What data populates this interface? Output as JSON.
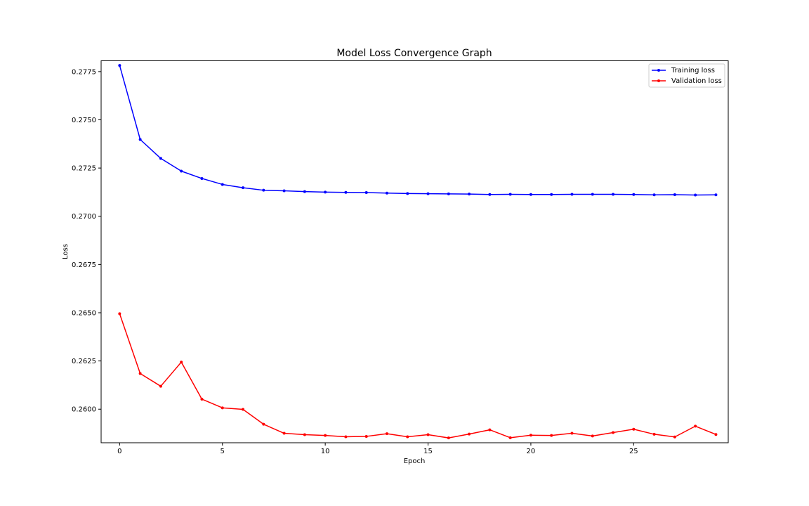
{
  "chart_data": {
    "type": "line",
    "title": "Model Loss Convergence Graph",
    "xlabel": "Epoch",
    "ylabel": "Loss",
    "xlim": [
      -0.9,
      29.6
    ],
    "ylim": [
      0.25826,
      0.27806
    ],
    "x_ticks": [
      0,
      5,
      10,
      15,
      20,
      25
    ],
    "y_ticks": [
      0.26,
      0.2625,
      0.265,
      0.2675,
      0.27,
      0.2725,
      0.275,
      0.2775
    ],
    "y_tick_labels": [
      "0.2600",
      "0.2625",
      "0.2650",
      "0.2675",
      "0.2700",
      "0.2725",
      "0.2750",
      "0.2775"
    ],
    "grid": false,
    "legend_position": "top-right",
    "x": [
      0,
      1,
      2,
      3,
      4,
      5,
      6,
      7,
      8,
      9,
      10,
      11,
      12,
      13,
      14,
      15,
      16,
      17,
      18,
      19,
      20,
      21,
      22,
      23,
      24,
      25,
      26,
      27,
      28,
      29
    ],
    "series": [
      {
        "name": "Training loss",
        "color": "#0000ff",
        "marker": "dot",
        "values": [
          0.27782,
          0.27398,
          0.273,
          0.27234,
          0.27196,
          0.27165,
          0.27148,
          0.27135,
          0.27132,
          0.27128,
          0.27125,
          0.27124,
          0.27123,
          0.2712,
          0.27118,
          0.27117,
          0.27116,
          0.27115,
          0.27113,
          0.27114,
          0.27113,
          0.27113,
          0.27114,
          0.27114,
          0.27114,
          0.27113,
          0.27111,
          0.27112,
          0.2711,
          0.27111
        ]
      },
      {
        "name": "Validation loss",
        "color": "#ff0000",
        "marker": "dot",
        "values": [
          0.26495,
          0.26185,
          0.26119,
          0.26244,
          0.26052,
          0.26007,
          0.25999,
          0.25922,
          0.25875,
          0.25868,
          0.25864,
          0.25857,
          0.25859,
          0.25873,
          0.25857,
          0.25868,
          0.25851,
          0.25871,
          0.25893,
          0.25852,
          0.25865,
          0.25864,
          0.25875,
          0.25861,
          0.25879,
          0.25896,
          0.2587,
          0.25856,
          0.25912,
          0.25869
        ]
      }
    ]
  }
}
